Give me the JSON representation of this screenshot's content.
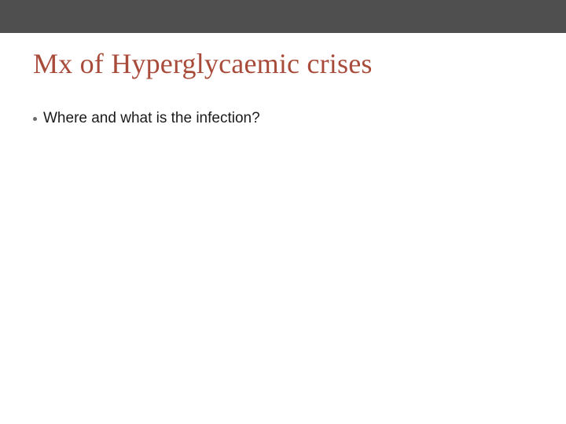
{
  "slide": {
    "top_bar_color": "#4f4f4f",
    "background_color": "#ffffff",
    "title": {
      "text": "Mx of Hyperglycaemic crises",
      "color": "#a84b3a",
      "font_family_serif": true,
      "font_size_pt": 28
    },
    "bullets": [
      {
        "text": "Where and what is the infection?",
        "dot_color": "#6b6b6b",
        "text_color": "#1a1a1a",
        "font_size_pt": 14
      }
    ]
  }
}
